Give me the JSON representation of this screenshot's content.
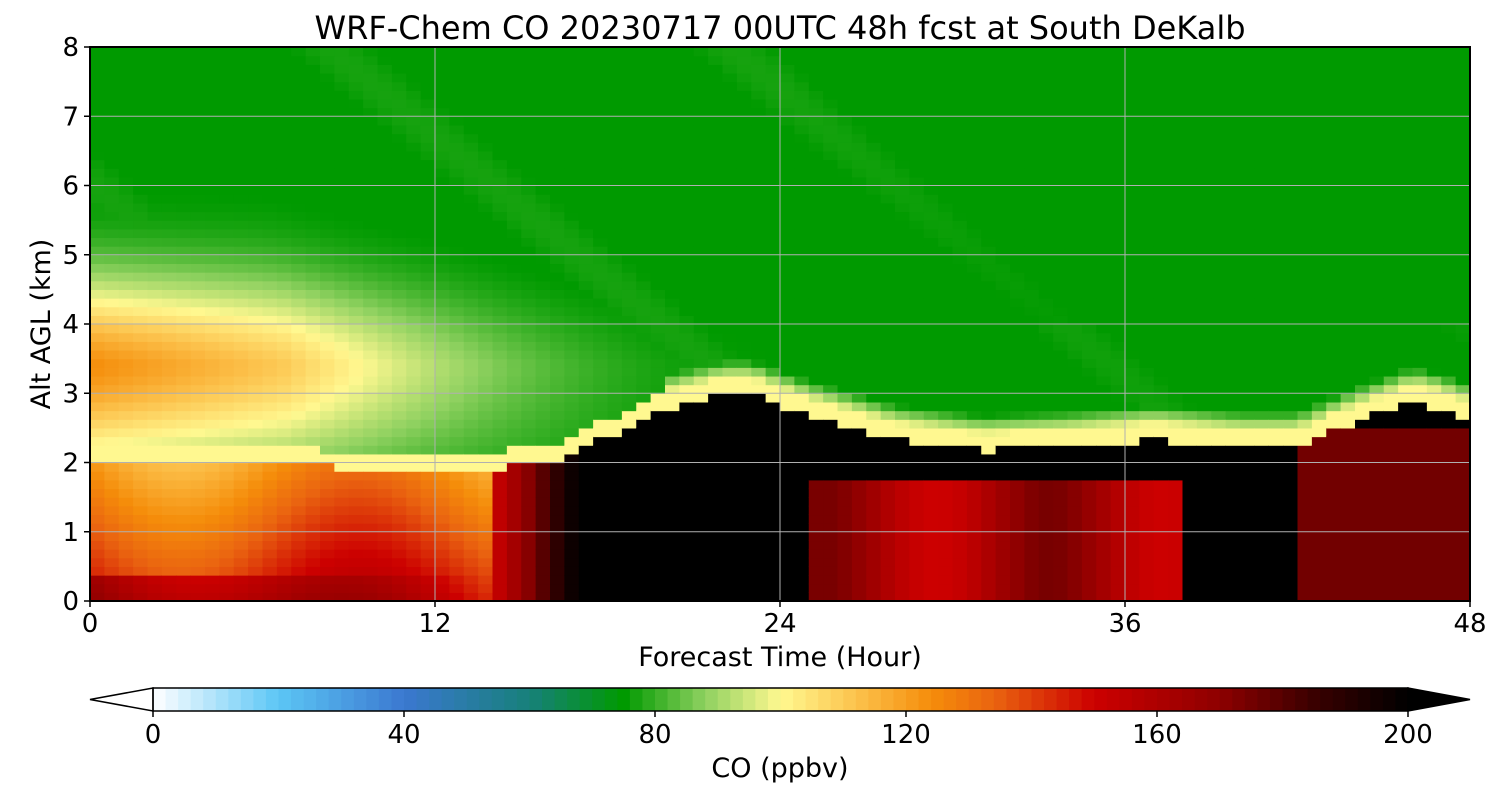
{
  "chart_data": {
    "type": "heatmap",
    "title": "WRF-Chem CO  20230717 00UTC 48h fcst at South DeKalb",
    "xlabel": "Forecast Time (Hour)",
    "ylabel": "Alt AGL (km)",
    "xlim": [
      0,
      48
    ],
    "ylim": [
      0,
      8
    ],
    "xticks": [
      0,
      12,
      24,
      36,
      48
    ],
    "yticks": [
      0,
      1,
      2,
      3,
      4,
      5,
      6,
      7,
      8
    ],
    "grid": true,
    "colorbar": {
      "label": "CO  (ppbv)",
      "orientation": "horizontal",
      "placement": "bottom",
      "range": [
        0,
        200
      ],
      "ticks": [
        0,
        40,
        80,
        120,
        160,
        200
      ],
      "extend": "both",
      "colormap": [
        {
          "v": 0,
          "c": "#ffffff"
        },
        {
          "v": 20,
          "c": "#5cc6f5"
        },
        {
          "v": 40,
          "c": "#3b78d0"
        },
        {
          "v": 60,
          "c": "#17807a"
        },
        {
          "v": 75,
          "c": "#009a00"
        },
        {
          "v": 88,
          "c": "#8fd160"
        },
        {
          "v": 100,
          "c": "#fff890"
        },
        {
          "v": 112,
          "c": "#fcc24c"
        },
        {
          "v": 124,
          "c": "#f58d0a"
        },
        {
          "v": 134,
          "c": "#ea6410"
        },
        {
          "v": 150,
          "c": "#cc0000"
        },
        {
          "v": 170,
          "c": "#8e0000"
        },
        {
          "v": 185,
          "c": "#3a0000"
        },
        {
          "v": 200,
          "c": "#000000"
        }
      ]
    },
    "boundary_layer_top_km": {
      "x": [
        0,
        6,
        12,
        16,
        18,
        20,
        22,
        23,
        25,
        28,
        31,
        34,
        37,
        40,
        42,
        44,
        46,
        47,
        48
      ],
      "y": [
        2.15,
        2.1,
        2.0,
        2.1,
        2.5,
        2.9,
        3.1,
        3.1,
        2.8,
        2.45,
        2.3,
        2.35,
        2.45,
        2.35,
        2.35,
        2.7,
        3.0,
        2.9,
        2.75
      ]
    },
    "free_troposphere_top_km": {
      "x": [
        0,
        6,
        12,
        18,
        24,
        48
      ],
      "y": [
        5.9,
        5.85,
        5.2,
        4.4,
        3.2,
        3.2
      ]
    }
  }
}
